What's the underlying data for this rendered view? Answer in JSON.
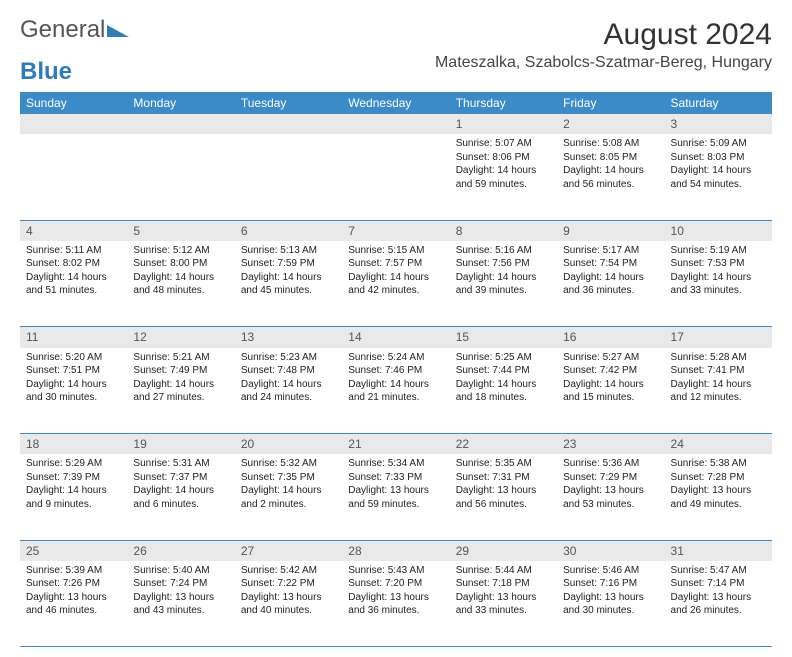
{
  "brand": {
    "part1": "General",
    "part2": "Blue"
  },
  "title": "August 2024",
  "location": "Mateszalka, Szabolcs-Szatmar-Bereg, Hungary",
  "colors": {
    "header_bg": "#3b8bc9",
    "header_text": "#ffffff",
    "daynum_bg": "#e9e9e9",
    "row_divider": "#3b8bc9",
    "body_text": "#222222",
    "logo_gray": "#555555",
    "logo_blue": "#2f7bbf"
  },
  "weekdays": [
    "Sunday",
    "Monday",
    "Tuesday",
    "Wednesday",
    "Thursday",
    "Friday",
    "Saturday"
  ],
  "weeks": [
    [
      null,
      null,
      null,
      null,
      {
        "n": "1",
        "sr": "Sunrise: 5:07 AM",
        "ss": "Sunset: 8:06 PM",
        "dl": "Daylight: 14 hours and 59 minutes."
      },
      {
        "n": "2",
        "sr": "Sunrise: 5:08 AM",
        "ss": "Sunset: 8:05 PM",
        "dl": "Daylight: 14 hours and 56 minutes."
      },
      {
        "n": "3",
        "sr": "Sunrise: 5:09 AM",
        "ss": "Sunset: 8:03 PM",
        "dl": "Daylight: 14 hours and 54 minutes."
      }
    ],
    [
      {
        "n": "4",
        "sr": "Sunrise: 5:11 AM",
        "ss": "Sunset: 8:02 PM",
        "dl": "Daylight: 14 hours and 51 minutes."
      },
      {
        "n": "5",
        "sr": "Sunrise: 5:12 AM",
        "ss": "Sunset: 8:00 PM",
        "dl": "Daylight: 14 hours and 48 minutes."
      },
      {
        "n": "6",
        "sr": "Sunrise: 5:13 AM",
        "ss": "Sunset: 7:59 PM",
        "dl": "Daylight: 14 hours and 45 minutes."
      },
      {
        "n": "7",
        "sr": "Sunrise: 5:15 AM",
        "ss": "Sunset: 7:57 PM",
        "dl": "Daylight: 14 hours and 42 minutes."
      },
      {
        "n": "8",
        "sr": "Sunrise: 5:16 AM",
        "ss": "Sunset: 7:56 PM",
        "dl": "Daylight: 14 hours and 39 minutes."
      },
      {
        "n": "9",
        "sr": "Sunrise: 5:17 AM",
        "ss": "Sunset: 7:54 PM",
        "dl": "Daylight: 14 hours and 36 minutes."
      },
      {
        "n": "10",
        "sr": "Sunrise: 5:19 AM",
        "ss": "Sunset: 7:53 PM",
        "dl": "Daylight: 14 hours and 33 minutes."
      }
    ],
    [
      {
        "n": "11",
        "sr": "Sunrise: 5:20 AM",
        "ss": "Sunset: 7:51 PM",
        "dl": "Daylight: 14 hours and 30 minutes."
      },
      {
        "n": "12",
        "sr": "Sunrise: 5:21 AM",
        "ss": "Sunset: 7:49 PM",
        "dl": "Daylight: 14 hours and 27 minutes."
      },
      {
        "n": "13",
        "sr": "Sunrise: 5:23 AM",
        "ss": "Sunset: 7:48 PM",
        "dl": "Daylight: 14 hours and 24 minutes."
      },
      {
        "n": "14",
        "sr": "Sunrise: 5:24 AM",
        "ss": "Sunset: 7:46 PM",
        "dl": "Daylight: 14 hours and 21 minutes."
      },
      {
        "n": "15",
        "sr": "Sunrise: 5:25 AM",
        "ss": "Sunset: 7:44 PM",
        "dl": "Daylight: 14 hours and 18 minutes."
      },
      {
        "n": "16",
        "sr": "Sunrise: 5:27 AM",
        "ss": "Sunset: 7:42 PM",
        "dl": "Daylight: 14 hours and 15 minutes."
      },
      {
        "n": "17",
        "sr": "Sunrise: 5:28 AM",
        "ss": "Sunset: 7:41 PM",
        "dl": "Daylight: 14 hours and 12 minutes."
      }
    ],
    [
      {
        "n": "18",
        "sr": "Sunrise: 5:29 AM",
        "ss": "Sunset: 7:39 PM",
        "dl": "Daylight: 14 hours and 9 minutes."
      },
      {
        "n": "19",
        "sr": "Sunrise: 5:31 AM",
        "ss": "Sunset: 7:37 PM",
        "dl": "Daylight: 14 hours and 6 minutes."
      },
      {
        "n": "20",
        "sr": "Sunrise: 5:32 AM",
        "ss": "Sunset: 7:35 PM",
        "dl": "Daylight: 14 hours and 2 minutes."
      },
      {
        "n": "21",
        "sr": "Sunrise: 5:34 AM",
        "ss": "Sunset: 7:33 PM",
        "dl": "Daylight: 13 hours and 59 minutes."
      },
      {
        "n": "22",
        "sr": "Sunrise: 5:35 AM",
        "ss": "Sunset: 7:31 PM",
        "dl": "Daylight: 13 hours and 56 minutes."
      },
      {
        "n": "23",
        "sr": "Sunrise: 5:36 AM",
        "ss": "Sunset: 7:29 PM",
        "dl": "Daylight: 13 hours and 53 minutes."
      },
      {
        "n": "24",
        "sr": "Sunrise: 5:38 AM",
        "ss": "Sunset: 7:28 PM",
        "dl": "Daylight: 13 hours and 49 minutes."
      }
    ],
    [
      {
        "n": "25",
        "sr": "Sunrise: 5:39 AM",
        "ss": "Sunset: 7:26 PM",
        "dl": "Daylight: 13 hours and 46 minutes."
      },
      {
        "n": "26",
        "sr": "Sunrise: 5:40 AM",
        "ss": "Sunset: 7:24 PM",
        "dl": "Daylight: 13 hours and 43 minutes."
      },
      {
        "n": "27",
        "sr": "Sunrise: 5:42 AM",
        "ss": "Sunset: 7:22 PM",
        "dl": "Daylight: 13 hours and 40 minutes."
      },
      {
        "n": "28",
        "sr": "Sunrise: 5:43 AM",
        "ss": "Sunset: 7:20 PM",
        "dl": "Daylight: 13 hours and 36 minutes."
      },
      {
        "n": "29",
        "sr": "Sunrise: 5:44 AM",
        "ss": "Sunset: 7:18 PM",
        "dl": "Daylight: 13 hours and 33 minutes."
      },
      {
        "n": "30",
        "sr": "Sunrise: 5:46 AM",
        "ss": "Sunset: 7:16 PM",
        "dl": "Daylight: 13 hours and 30 minutes."
      },
      {
        "n": "31",
        "sr": "Sunrise: 5:47 AM",
        "ss": "Sunset: 7:14 PM",
        "dl": "Daylight: 13 hours and 26 minutes."
      }
    ]
  ]
}
